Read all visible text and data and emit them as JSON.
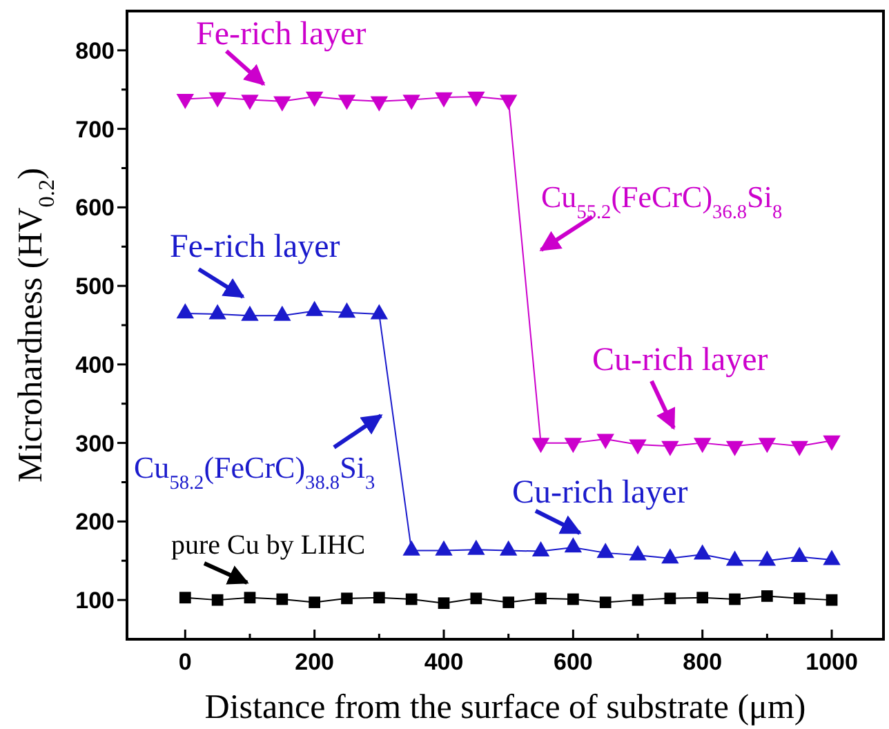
{
  "chart_data": {
    "type": "line",
    "xlabel": "Distance from the surface of substrate (μm)",
    "ylabel": "Microhardness (HV$_{0.2}$)",
    "xlim": [
      -90,
      1080
    ],
    "xticks": [
      0,
      200,
      400,
      600,
      800,
      1000
    ],
    "ylim": [
      50,
      850
    ],
    "yticks": [
      100,
      200,
      300,
      400,
      500,
      600,
      700,
      800
    ],
    "grid": false,
    "line_style": "solid",
    "series": [
      {
        "color": "#cc00cc",
        "marker": "triangle-down",
        "x": [
          0,
          50,
          100,
          150,
          200,
          250,
          300,
          350,
          400,
          450,
          500,
          550,
          600,
          650,
          700,
          750,
          800,
          850,
          900,
          950,
          1000
        ],
        "values": [
          738,
          740,
          737,
          735,
          741,
          737,
          735,
          737,
          740,
          741,
          737,
          300,
          300,
          305,
          298,
          296,
          300,
          296,
          300,
          296,
          303
        ]
      },
      {
        "color": "#1a1acc",
        "marker": "triangle",
        "x": [
          0,
          50,
          100,
          150,
          200,
          250,
          300,
          350,
          400,
          450,
          500,
          550,
          600,
          650,
          700,
          750,
          800,
          850,
          900,
          950,
          1000
        ],
        "values": [
          465,
          464,
          462,
          462,
          468,
          466,
          464,
          163,
          163,
          164,
          163,
          162,
          167,
          160,
          157,
          153,
          158,
          150,
          150,
          155,
          151
        ]
      },
      {
        "color": "#000000",
        "marker": "square",
        "x": [
          0,
          50,
          100,
          150,
          200,
          250,
          300,
          350,
          400,
          450,
          500,
          550,
          600,
          650,
          700,
          750,
          800,
          850,
          900,
          950,
          1000
        ],
        "values": [
          103,
          100,
          103,
          101,
          97,
          102,
          103,
          101,
          96,
          102,
          97,
          102,
          101,
          97,
          100,
          102,
          103,
          101,
          105,
          102,
          100
        ]
      }
    ],
    "annotations": [
      "Fe-rich layer",
      "Cu$_{55.2}$(FeCrC)$_{36.8}$Si$_{8}$",
      "Fe-rich layer",
      "Cu$_{58.2}$(FeCrC)$_{38.8}$Si$_{3}$",
      "Cu-rich layer",
      "Cu-rich layer",
      "pure Cu by LIHC"
    ]
  }
}
